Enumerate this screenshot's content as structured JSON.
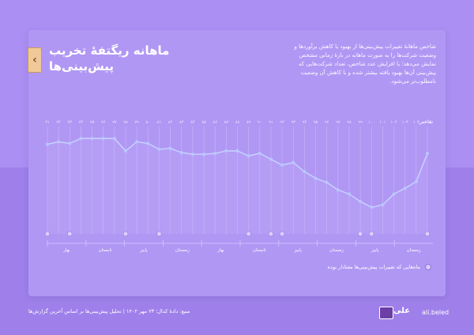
{
  "header": {
    "back_label": "‹",
    "title": "ماهانه ریگتفهٔ تخریب پیش‌بینی‌ها"
  },
  "description": "شاخص ماهانهٔ تغییرات پیش‌بینی‌ها از بهبود یا کاهش برآوردها و وضعیت شرکت‌ها را به صورت ماهانه در بازهٔ زمانی مشخص نمایش می‌دهد؛ با افزایش عدد شاخص، تعداد شرکت‌هایی که پیش‌بینی آن‌ها بهبود یافته بیشتر شده و با کاهش آن وضعیت نامطلوب‌تر می‌شود.",
  "legend": {
    "marker_label": "ماه‌هایی که تغییرات پیش‌بینی‌ها معنادار بوده"
  },
  "footer": {
    "note": "منبع: دادهٔ کدال؛ ۲۳ مهر ۱۴۰۲ | تحلیل پیش‌بینی‌ها بر اساس آخرین گزارش‌ها",
    "brand_mark": "علی",
    "brand": "ali.beled"
  },
  "colors": {
    "line": "#c7d5ff",
    "point": "#b8c8ff",
    "grid": "#c8b6f8",
    "marker": "#ddd0ff"
  },
  "chart_data": {
    "type": "line",
    "title": "ماهانه ریگتفهٔ تخریب پیش‌بینی‌ها",
    "y_axis_title": "شاخص",
    "ylim": [
      0,
      100
    ],
    "x": [
      "۷۱",
      "۷۲",
      "۷۳",
      "۷۴",
      "۷۵",
      "۷۶",
      "۷۷",
      "۷۸",
      "۷۹",
      "۸۰",
      "۸۱",
      "۸۲",
      "۸۳",
      "۸۴",
      "۸۵",
      "۸۶",
      "۸۷",
      "۸۸",
      "۸۹",
      "۹۰",
      "۹۱",
      "۹۲",
      "۹۳",
      "۹۴",
      "۹۵",
      "۹۶",
      "۹۷",
      "۹۸",
      "۹۹",
      "۱۰۰",
      "۱۰۱",
      "۱۰۲",
      "۱۰۳",
      "۱۰۴",
      "۱۰۵"
    ],
    "series": [
      {
        "name": "شاخص",
        "values": [
          88,
          91,
          89,
          95,
          95,
          95,
          95,
          80,
          91,
          89,
          82,
          83,
          78,
          76,
          76,
          77,
          80,
          80,
          74,
          77,
          70,
          63,
          66,
          55,
          47,
          42,
          33,
          28,
          19,
          12,
          15,
          28,
          35,
          43,
          77
        ]
      }
    ],
    "markers_at": [
      0,
      2,
      7,
      10,
      18,
      20,
      21,
      28,
      29,
      34
    ],
    "periods": [
      "بهار",
      "تابستان",
      "پاییز",
      "زمستان",
      "بهار",
      "تابستان",
      "پاییز",
      "زمستان",
      "پاییز",
      "زمستان"
    ],
    "grid": true
  }
}
